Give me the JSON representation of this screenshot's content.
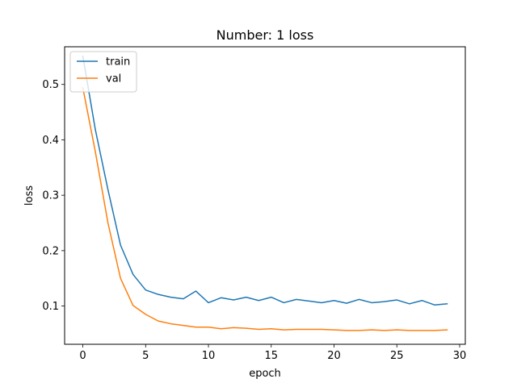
{
  "chart_data": {
    "type": "line",
    "title": "Number: 1 loss",
    "xlabel": "epoch",
    "ylabel": "loss",
    "xlim": [
      -1.45,
      30.45
    ],
    "ylim": [
      0.031,
      0.568
    ],
    "xticks": [
      0,
      5,
      10,
      15,
      20,
      25,
      30
    ],
    "yticks": [
      0.1,
      0.2,
      0.3,
      0.4,
      0.5
    ],
    "grid": false,
    "legend_position": "top-left",
    "x": [
      0,
      1,
      2,
      3,
      4,
      5,
      6,
      7,
      8,
      9,
      10,
      11,
      12,
      13,
      14,
      15,
      16,
      17,
      18,
      19,
      20,
      21,
      22,
      23,
      24,
      25,
      26,
      27,
      28,
      29
    ],
    "series": [
      {
        "name": "train",
        "color": "#1f77b4",
        "values": [
          0.551,
          0.418,
          0.31,
          0.21,
          0.157,
          0.129,
          0.121,
          0.116,
          0.113,
          0.127,
          0.106,
          0.115,
          0.111,
          0.116,
          0.11,
          0.116,
          0.106,
          0.112,
          0.109,
          0.106,
          0.11,
          0.105,
          0.112,
          0.106,
          0.108,
          0.111,
          0.104,
          0.11,
          0.102,
          0.104
        ]
      },
      {
        "name": "val",
        "color": "#ff7f0e",
        "values": [
          0.494,
          0.378,
          0.25,
          0.15,
          0.101,
          0.085,
          0.073,
          0.068,
          0.065,
          0.062,
          0.062,
          0.059,
          0.061,
          0.06,
          0.058,
          0.059,
          0.057,
          0.058,
          0.058,
          0.058,
          0.057,
          0.056,
          0.056,
          0.057,
          0.056,
          0.057,
          0.056,
          0.056,
          0.056,
          0.057
        ]
      }
    ]
  }
}
